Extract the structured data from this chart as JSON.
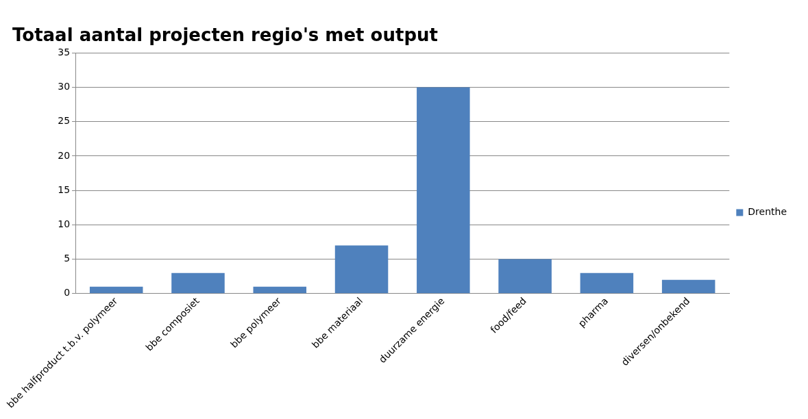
{
  "chart_data": {
    "type": "bar",
    "title": "Totaal aantal projecten regio's met output",
    "categories": [
      "bbe halfproduct t.b.v. polymeer",
      "bbe composiet",
      "bbe polymeer",
      "bbe materiaal",
      "duurzame energie",
      "food/feed",
      "pharma",
      "diversen/onbekend"
    ],
    "series": [
      {
        "name": "Drenthe",
        "color": "#4f81bd",
        "values": [
          1,
          3,
          1,
          7,
          30,
          5,
          3,
          2
        ]
      }
    ],
    "ylim": [
      0,
      35
    ],
    "yticks": [
      0,
      5,
      10,
      15,
      20,
      25,
      30,
      35
    ],
    "grid": "y",
    "legend": "right"
  }
}
